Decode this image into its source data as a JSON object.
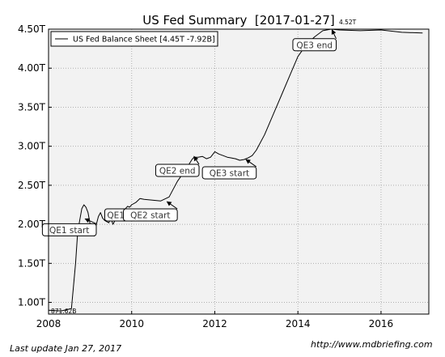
{
  "chart_data": {
    "type": "line",
    "title": "US Fed Summary  [2017-01-27]",
    "xlabel": "",
    "ylabel": "",
    "xlim": [
      2008.0,
      2017.15
    ],
    "ylim": [
      0.85,
      4.5
    ],
    "x_ticks": [
      2008,
      2010,
      2012,
      2014,
      2016
    ],
    "x_tick_labels": [
      "2008",
      "2010",
      "2012",
      "2014",
      "2016"
    ],
    "y_ticks": [
      1.0,
      1.5,
      2.0,
      2.5,
      3.0,
      3.5,
      4.0,
      4.5
    ],
    "y_tick_labels": [
      "1.00T",
      "1.50T",
      "2.00T",
      "2.50T",
      "3.00T",
      "3.50T",
      "4.00T",
      "4.50T"
    ],
    "grid": true,
    "legend": {
      "position": "top-left",
      "entries": [
        "US Fed Balance Sheet [4.45T -7.92B]"
      ]
    },
    "series": [
      {
        "name": "US Fed Balance Sheet [4.45T -7.92B]",
        "color": "#000000",
        "x": [
          2008.0,
          2008.3,
          2008.55,
          2008.65,
          2008.7,
          2008.75,
          2008.8,
          2008.85,
          2008.9,
          2008.95,
          2009.0,
          2009.05,
          2009.1,
          2009.15,
          2009.2,
          2009.25,
          2009.3,
          2009.35,
          2009.45,
          2009.5,
          2009.55,
          2009.6,
          2009.65,
          2009.7,
          2009.75,
          2009.8,
          2009.85,
          2009.9,
          2009.95,
          2010.0,
          2010.1,
          2010.2,
          2010.3,
          2010.5,
          2010.7,
          2010.9,
          2011.0,
          2011.1,
          2011.3,
          2011.45,
          2011.5,
          2011.6,
          2011.7,
          2011.8,
          2011.9,
          2012.0,
          2012.1,
          2012.2,
          2012.3,
          2012.4,
          2012.5,
          2012.6,
          2012.7,
          2012.8,
          2012.9,
          2013.0,
          2013.2,
          2013.4,
          2013.6,
          2013.8,
          2014.0,
          2014.2,
          2014.4,
          2014.6,
          2014.8,
          2015.0,
          2015.5,
          2016.0,
          2016.5,
          2017.0
        ],
        "values": [
          0.9,
          0.89,
          0.92,
          1.5,
          1.9,
          2.05,
          2.2,
          2.25,
          2.22,
          2.15,
          2.0,
          1.88,
          1.85,
          2.0,
          2.1,
          2.15,
          2.08,
          2.05,
          2.02,
          2.08,
          2.0,
          2.05,
          2.12,
          2.1,
          2.15,
          2.13,
          2.2,
          2.23,
          2.22,
          2.25,
          2.28,
          2.33,
          2.32,
          2.31,
          2.3,
          2.35,
          2.45,
          2.55,
          2.7,
          2.83,
          2.86,
          2.86,
          2.87,
          2.84,
          2.86,
          2.93,
          2.9,
          2.88,
          2.86,
          2.85,
          2.84,
          2.82,
          2.83,
          2.85,
          2.88,
          2.95,
          3.15,
          3.4,
          3.65,
          3.9,
          4.15,
          4.3,
          4.4,
          4.48,
          4.5,
          4.49,
          4.48,
          4.49,
          4.46,
          4.45
        ]
      }
    ],
    "annotations": [
      {
        "text": "QE1 start",
        "x": 2008.5,
        "y": 1.93,
        "target_x": 2008.88,
        "target_y": 2.07
      },
      {
        "text": "QE1",
        "x": 2009.62,
        "y": 2.12,
        "target_x": 2009.62,
        "target_y": 2.1
      },
      {
        "text": "QE2 start",
        "x": 2010.45,
        "y": 2.12,
        "target_x": 2010.85,
        "target_y": 2.29
      },
      {
        "text": "QE2 end",
        "x": 2011.1,
        "y": 2.69,
        "target_x": 2011.5,
        "target_y": 2.87
      },
      {
        "text": "QE3 start",
        "x": 2012.35,
        "y": 2.66,
        "target_x": 2012.75,
        "target_y": 2.83
      },
      {
        "text": "QE3 end",
        "x": 2014.4,
        "y": 4.3,
        "target_x": 2014.82,
        "target_y": 4.49
      }
    ],
    "point_labels": [
      {
        "text": "4.52T",
        "x": 2014.95,
        "y": 4.52
      },
      {
        "text": "871.62B",
        "x": 2008.0,
        "y": 0.87
      }
    ]
  },
  "footer": {
    "left": "Last update Jan 27, 2017",
    "right": "http://www.mdbriefing.com"
  }
}
